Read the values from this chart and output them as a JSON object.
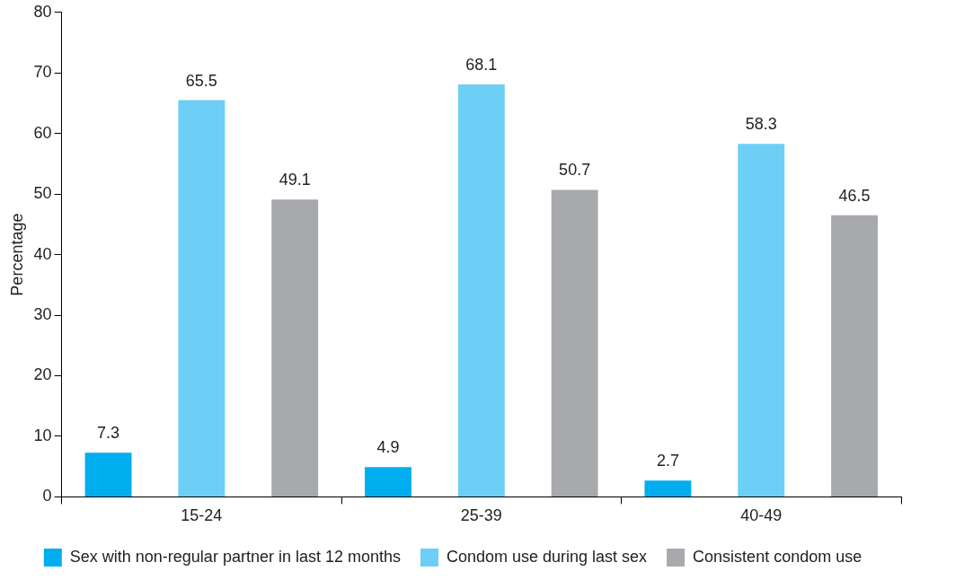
{
  "chart_data": {
    "type": "bar",
    "ylabel": "Percentage",
    "categories": [
      "15-24",
      "25-39",
      "40-49"
    ],
    "series": [
      {
        "name": "Sex with non-regular partner in last 12 months",
        "color": "#00aeef",
        "values": [
          7.3,
          4.9,
          2.7
        ]
      },
      {
        "name": "Condom use during last sex",
        "color": "#6dcff6",
        "values": [
          65.5,
          68.1,
          58.3
        ]
      },
      {
        "name": "Consistent condom use",
        "color": "#a7a9ac",
        "values": [
          49.1,
          50.7,
          46.5
        ]
      }
    ],
    "ylim": [
      0,
      80
    ],
    "yticks": [
      0,
      10,
      20,
      30,
      40,
      50,
      60,
      70,
      80
    ],
    "grid": false,
    "legend": "bottom",
    "data_labels": true
  }
}
